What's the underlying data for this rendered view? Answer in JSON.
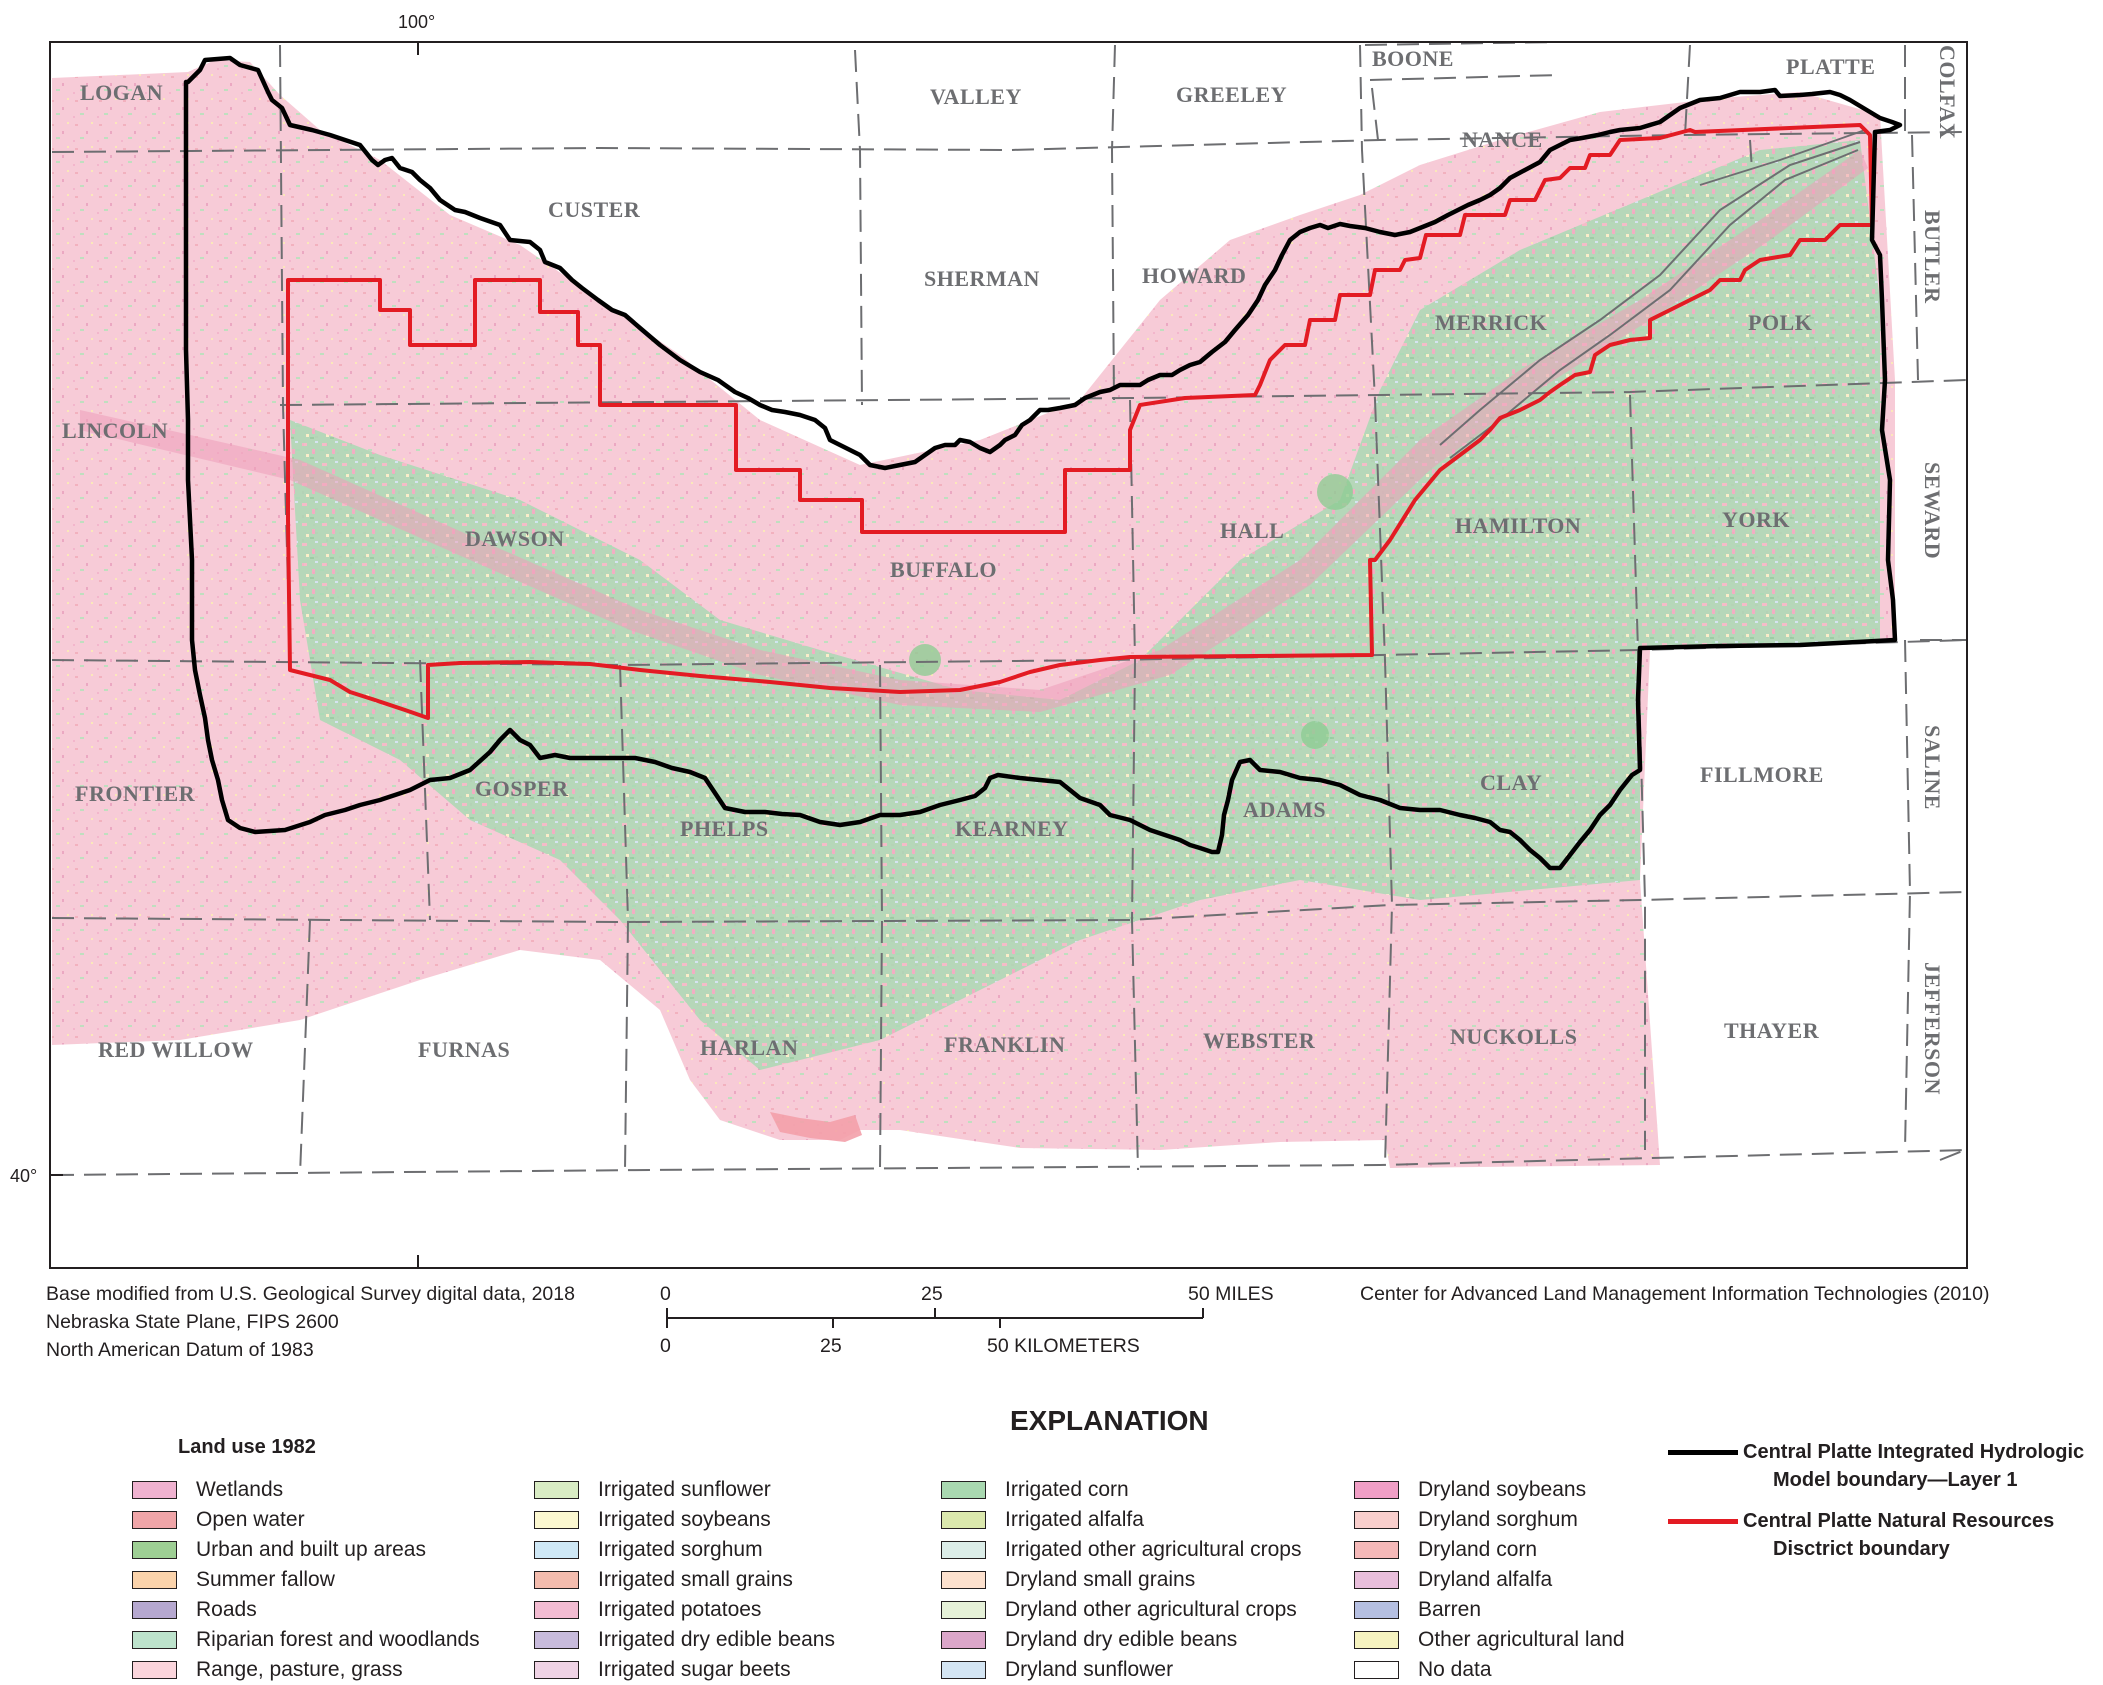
{
  "map": {
    "graticule": {
      "lon_label": "100°",
      "lat_label": "40°"
    },
    "counties": [
      {
        "name": "LOGAN",
        "orient": "h"
      },
      {
        "name": "VALLEY",
        "orient": "h"
      },
      {
        "name": "GREELEY",
        "orient": "h"
      },
      {
        "name": "BOONE",
        "orient": "h"
      },
      {
        "name": "PLATTE",
        "orient": "h"
      },
      {
        "name": "COLFAX",
        "orient": "v"
      },
      {
        "name": "NANCE",
        "orient": "h"
      },
      {
        "name": "CUSTER",
        "orient": "h"
      },
      {
        "name": "SHERMAN",
        "orient": "h"
      },
      {
        "name": "HOWARD",
        "orient": "h"
      },
      {
        "name": "BUTLER",
        "orient": "v"
      },
      {
        "name": "MERRICK",
        "orient": "h"
      },
      {
        "name": "POLK",
        "orient": "h"
      },
      {
        "name": "LINCOLN",
        "orient": "h"
      },
      {
        "name": "SEWARD",
        "orient": "v"
      },
      {
        "name": "DAWSON",
        "orient": "h"
      },
      {
        "name": "BUFFALO",
        "orient": "h"
      },
      {
        "name": "HALL",
        "orient": "h"
      },
      {
        "name": "HAMILTON",
        "orient": "h"
      },
      {
        "name": "YORK",
        "orient": "h"
      },
      {
        "name": "SALINE",
        "orient": "v"
      },
      {
        "name": "FRONTIER",
        "orient": "h"
      },
      {
        "name": "GOSPER",
        "orient": "h"
      },
      {
        "name": "PHELPS",
        "orient": "h"
      },
      {
        "name": "KEARNEY",
        "orient": "h"
      },
      {
        "name": "ADAMS",
        "orient": "h"
      },
      {
        "name": "CLAY",
        "orient": "h"
      },
      {
        "name": "FILLMORE",
        "orient": "h"
      },
      {
        "name": "JEFFERSON",
        "orient": "v"
      },
      {
        "name": "RED WILLOW",
        "orient": "h"
      },
      {
        "name": "FURNAS",
        "orient": "h"
      },
      {
        "name": "HARLAN",
        "orient": "h"
      },
      {
        "name": "FRANKLIN",
        "orient": "h"
      },
      {
        "name": "WEBSTER",
        "orient": "h"
      },
      {
        "name": "NUCKOLLS",
        "orient": "h"
      },
      {
        "name": "THAYER",
        "orient": "h"
      }
    ],
    "colors": {
      "model_boundary": "#000000",
      "nrd_boundary": "#e31b23",
      "landuse_pink": "#f6c7d3",
      "landuse_green": "#a9d8b0",
      "county_line": "#6d6e71",
      "river": "#6d6e71"
    }
  },
  "credits": {
    "base_lines": [
      "Base modified from U.S. Geological Survey digital data, 2018",
      "Nebraska State Plane, FIPS 2600",
      "North American Datum of 1983"
    ],
    "source": "Center for Advanced Land Management Information Technologies (2010)"
  },
  "scale": {
    "miles_ticks": [
      "0",
      "25",
      "50 MILES"
    ],
    "km_ticks": [
      "0",
      "25",
      "50 KILOMETERS"
    ]
  },
  "explanation": {
    "title": "EXPLANATION",
    "heading": "Land use 1982",
    "columns": [
      [
        {
          "label": "Wetlands",
          "color": "#f0b2d0"
        },
        {
          "label": "Open water",
          "color": "#f0a5a8"
        },
        {
          "label": "Urban and built up areas",
          "color": "#9ecf94"
        },
        {
          "label": "Summer fallow",
          "color": "#fbd3ab"
        },
        {
          "label": "Roads",
          "color": "#b6a8d0"
        },
        {
          "label": "Riparian forest and woodlands",
          "color": "#bde3cc"
        },
        {
          "label": "Range, pasture, grass",
          "color": "#fbd5dc"
        }
      ],
      [
        {
          "label": "Irrigated sunflower",
          "color": "#d9ecc4"
        },
        {
          "label": "Irrigated soybeans",
          "color": "#fcf8d1"
        },
        {
          "label": "Irrigated sorghum",
          "color": "#cfe8f6"
        },
        {
          "label": "Irrigated small grains",
          "color": "#f4bcae"
        },
        {
          "label": "Irrigated potatoes",
          "color": "#f3bcd2"
        },
        {
          "label": "Irrigated dry edible beans",
          "color": "#c8bbdc"
        },
        {
          "label": "Irrigated sugar beets",
          "color": "#efd3e5"
        }
      ],
      [
        {
          "label": "Irrigated corn",
          "color": "#a9d8b0"
        },
        {
          "label": "Irrigated alfalfa",
          "color": "#dbe8ad"
        },
        {
          "label": "Irrigated other agricultural crops",
          "color": "#dcede8"
        },
        {
          "label": "Dryland small grains",
          "color": "#fde1ce"
        },
        {
          "label": "Dryland other agricultural crops",
          "color": "#e6f1d8"
        },
        {
          "label": "Dryland dry edible beans",
          "color": "#dba6c9"
        },
        {
          "label": "Dryland sunflower",
          "color": "#d4e5f3"
        }
      ],
      [
        {
          "label": "Dryland soybeans",
          "color": "#f19fc6"
        },
        {
          "label": "Dryland sorghum",
          "color": "#f9cfcd"
        },
        {
          "label": "Dryland corn",
          "color": "#f5b9b9"
        },
        {
          "label": "Dryland alfalfa",
          "color": "#e8bedb"
        },
        {
          "label": "Barren",
          "color": "#b5bfe1"
        },
        {
          "label": "Other agricultural land",
          "color": "#f6f3c0"
        },
        {
          "label": "No data",
          "color": "#ffffff"
        }
      ]
    ],
    "lines": [
      {
        "line1": "Central Platte Integrated Hydrologic",
        "line2": "Model boundary—Layer 1",
        "color": "#000000"
      },
      {
        "line1": "Central Platte Natural Resources",
        "line2": "Disctrict boundary",
        "color": "#e31b23"
      }
    ]
  }
}
